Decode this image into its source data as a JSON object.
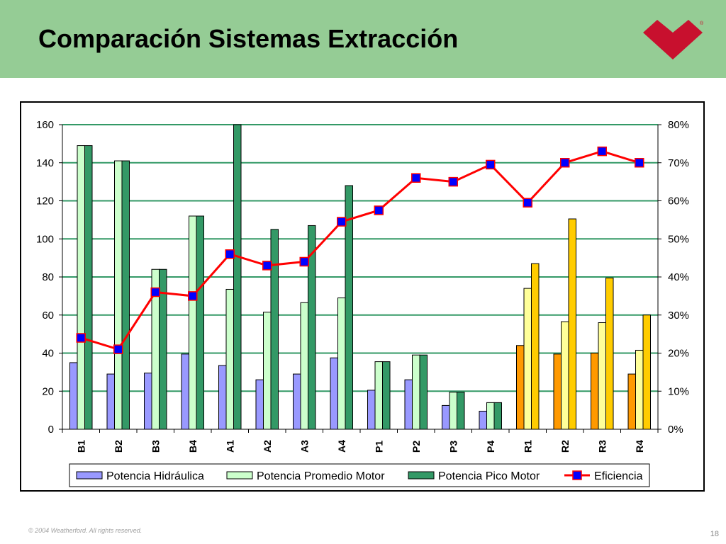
{
  "slide": {
    "title": "Comparación Sistemas Extracción",
    "copyright": "© 2004 Weatherford. All rights reserved.",
    "page_number": "18",
    "logo": {
      "name": "weatherford-logo-icon",
      "color": "#c8102e",
      "mark": "®"
    }
  },
  "chart_data": {
    "type": "bar",
    "categories": [
      "B1",
      "B2",
      "B3",
      "B4",
      "A1",
      "A2",
      "A3",
      "A4",
      "P1",
      "P2",
      "P3",
      "P4",
      "R1",
      "R2",
      "R3",
      "R4"
    ],
    "ylim": [
      0,
      160
    ],
    "yticks": [
      0,
      20,
      40,
      60,
      80,
      100,
      120,
      140,
      160
    ],
    "y2lim": [
      0,
      80
    ],
    "y2ticks": [
      "0%",
      "10%",
      "20%",
      "30%",
      "40%",
      "50%",
      "60%",
      "70%",
      "80%"
    ],
    "grid": true,
    "legend_position": "bottom",
    "series": [
      {
        "name": "Potencia Hidráulica",
        "kind": "bar",
        "color": "#9999ff",
        "r_group_color": "#ff9900",
        "values": [
          35,
          29,
          29.5,
          39.5,
          33.5,
          26,
          29,
          37.5,
          20.5,
          26,
          12.5,
          9.5,
          44,
          39.5,
          40,
          29
        ]
      },
      {
        "name": "Potencia Promedio Motor",
        "kind": "bar",
        "color": "#ccffcc",
        "r_group_color": "#ffff99",
        "values": [
          149,
          141,
          84,
          112,
          73.5,
          61.5,
          66.5,
          69,
          35.5,
          39,
          19.5,
          14,
          74,
          56.5,
          56,
          41.5
        ]
      },
      {
        "name": "Potencia Pico Motor",
        "kind": "bar",
        "color": "#339966",
        "r_group_color": "#ffcc00",
        "values": [
          149,
          141,
          84,
          112,
          160,
          105,
          107,
          128,
          35.5,
          39,
          19.5,
          14,
          87,
          110.5,
          79.5,
          60
        ]
      },
      {
        "name": "Eficiencia",
        "kind": "line",
        "axis": "right",
        "unit": "%",
        "color": "#ff0000",
        "marker_color": "#0000ff",
        "values": [
          24,
          21,
          36,
          35,
          46,
          43,
          44,
          54.5,
          57.5,
          66,
          65,
          69.5,
          59.5,
          70,
          73,
          70
        ]
      }
    ]
  }
}
